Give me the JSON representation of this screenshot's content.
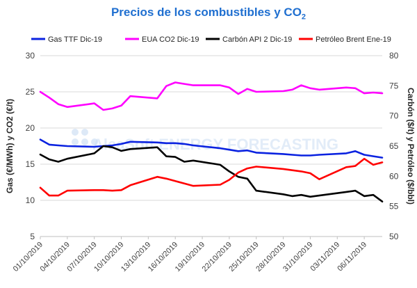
{
  "chart_data": {
    "type": "line",
    "title_main": "Precios de los combustibles y CO",
    "title_sub": "2",
    "ylabel_left": "Gas (€/MWh) y CO2 (€/t)",
    "ylabel_right": "Carbón ($/t) y Petróleo ($/bbl)",
    "ylim_left": [
      5,
      30
    ],
    "ylim_right": [
      50,
      80
    ],
    "yticks_left": [
      "5",
      "10",
      "15",
      "20",
      "25",
      "30"
    ],
    "yticks_right": [
      "50",
      "55",
      "60",
      "65",
      "70",
      "75",
      "80"
    ],
    "grid": true,
    "legend_position": "top",
    "watermark": "AleaSoft ENERGY FORECASTING",
    "x_tick_labels": [
      "01/10/2019",
      "04/10/2019",
      "07/10/2019",
      "10/10/2019",
      "13/10/2019",
      "16/10/2019",
      "19/10/2019",
      "22/10/2019",
      "25/10/2019",
      "28/10/2019",
      "31/10/2019",
      "03/11/2019",
      "06/11/2019"
    ],
    "x": [
      "01/10/2019",
      "02/10/2019",
      "03/10/2019",
      "04/10/2019",
      "07/10/2019",
      "08/10/2019",
      "09/10/2019",
      "10/10/2019",
      "11/10/2019",
      "14/10/2019",
      "15/10/2019",
      "16/10/2019",
      "17/10/2019",
      "18/10/2019",
      "21/10/2019",
      "22/10/2019",
      "23/10/2019",
      "24/10/2019",
      "25/10/2019",
      "28/10/2019",
      "29/10/2019",
      "30/10/2019",
      "31/10/2019",
      "01/11/2019",
      "04/11/2019",
      "05/11/2019",
      "06/11/2019",
      "07/11/2019",
      "08/11/2019"
    ],
    "x_index": [
      0,
      1,
      2,
      3,
      6,
      7,
      8,
      9,
      10,
      13,
      14,
      15,
      16,
      17,
      20,
      21,
      22,
      23,
      24,
      27,
      28,
      29,
      30,
      31,
      34,
      35,
      36,
      37,
      38
    ],
    "x_span": [
      0,
      38
    ],
    "series": [
      {
        "name": "Gas TTF Dic-19",
        "axis": "left",
        "color": "#0a22e0",
        "values": [
          18.4,
          17.7,
          17.6,
          17.5,
          17.4,
          17.5,
          17.6,
          17.8,
          18.1,
          18.0,
          17.9,
          17.9,
          17.8,
          17.6,
          17.2,
          17.0,
          16.8,
          16.9,
          16.6,
          16.4,
          16.3,
          16.2,
          16.2,
          16.3,
          16.5,
          16.8,
          16.3,
          16.1,
          15.9
        ]
      },
      {
        "name": "EUA CO2 Dic-19",
        "axis": "left",
        "color": "#ff00ff",
        "values": [
          25.0,
          24.2,
          23.3,
          22.9,
          23.4,
          22.5,
          22.7,
          23.1,
          24.4,
          24.1,
          25.8,
          26.3,
          26.1,
          25.9,
          25.9,
          25.6,
          24.7,
          25.4,
          25.0,
          25.1,
          25.3,
          25.9,
          25.5,
          25.3,
          25.6,
          25.5,
          24.8,
          24.9,
          24.8
        ]
      },
      {
        "name": "Carbón API 2 Dic-19",
        "axis": "right",
        "color": "#000000",
        "values": [
          63.6,
          62.8,
          62.4,
          62.9,
          63.8,
          65.0,
          64.8,
          64.2,
          64.5,
          64.8,
          63.3,
          63.2,
          62.4,
          62.6,
          61.9,
          60.8,
          59.9,
          59.6,
          57.6,
          57.0,
          56.7,
          56.9,
          56.6,
          56.8,
          57.4,
          57.6,
          56.7,
          56.9,
          55.8
        ]
      },
      {
        "name": "Petróleo Brent Ene-19",
        "axis": "right",
        "color": "#ff0000",
        "values": [
          58.1,
          56.8,
          56.8,
          57.6,
          57.7,
          57.7,
          57.6,
          57.7,
          58.5,
          59.9,
          59.6,
          59.2,
          58.8,
          58.4,
          58.6,
          59.4,
          60.6,
          61.3,
          61.6,
          61.2,
          61.0,
          60.8,
          60.5,
          59.5,
          61.5,
          61.7,
          62.9,
          61.9,
          62.3
        ]
      }
    ]
  }
}
